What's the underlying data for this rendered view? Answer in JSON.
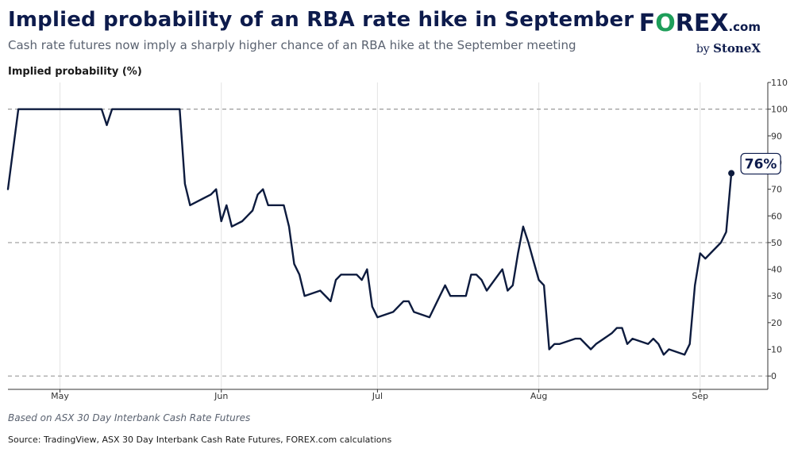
{
  "header": {
    "title": "Implied probability of an RBA rate hike in September",
    "subtitle": "Cash rate futures now imply a sharply higher chance of an RBA hike at the September meeting"
  },
  "logo": {
    "f": "F",
    "o": "O",
    "rex": "REX",
    "dotcom": ".com",
    "by": "by ",
    "brand": "StoneX"
  },
  "footer": {
    "note": "Based on ASX 30 Day Interbank Cash Rate Futures",
    "source": "Source: TradingView, ASX 30 Day Interbank Cash Rate Futures, FOREX.com calculations"
  },
  "colors": {
    "line": "#0d1b3e",
    "accent_green": "#1e9e5a",
    "navy": "#0d1b4c"
  },
  "chart_data": {
    "type": "line",
    "ylabel": "Implied probability (%)",
    "xlabel": "",
    "ylim": [
      -5,
      110
    ],
    "yticks": [
      0,
      10,
      20,
      30,
      40,
      50,
      60,
      70,
      80,
      90,
      100,
      110
    ],
    "dashed_reference_lines": [
      0,
      50,
      100
    ],
    "x_ticks": [
      {
        "label": "May",
        "date": "2025-05-01"
      },
      {
        "label": "Jun",
        "date": "2025-06-01"
      },
      {
        "label": "Jul",
        "date": "2025-07-01"
      },
      {
        "label": "Aug",
        "date": "2025-08-01"
      },
      {
        "label": "Sep",
        "date": "2025-09-01"
      }
    ],
    "xlim": [
      "2025-04-21",
      "2025-09-14"
    ],
    "grid": "vertical at month starts",
    "last_value_label": "76%",
    "series": [
      {
        "points": [
          [
            "2025-04-21",
            70
          ],
          [
            "2025-04-23",
            100
          ],
          [
            "2025-05-01",
            100
          ],
          [
            "2025-05-05",
            100
          ],
          [
            "2025-05-06",
            100
          ],
          [
            "2025-05-07",
            100
          ],
          [
            "2025-05-08",
            100
          ],
          [
            "2025-05-09",
            100
          ],
          [
            "2025-05-10",
            94
          ],
          [
            "2025-05-11",
            100
          ],
          [
            "2025-05-12",
            100
          ],
          [
            "2025-05-15",
            100
          ],
          [
            "2025-05-20",
            100
          ],
          [
            "2025-05-24",
            100
          ],
          [
            "2025-05-25",
            72
          ],
          [
            "2025-05-26",
            64
          ],
          [
            "2025-05-30",
            68
          ],
          [
            "2025-05-31",
            70
          ],
          [
            "2025-06-01",
            58
          ],
          [
            "2025-06-02",
            64
          ],
          [
            "2025-06-03",
            56
          ],
          [
            "2025-06-05",
            58
          ],
          [
            "2025-06-06",
            60
          ],
          [
            "2025-06-07",
            62
          ],
          [
            "2025-06-08",
            68
          ],
          [
            "2025-06-09",
            70
          ],
          [
            "2025-06-10",
            64
          ],
          [
            "2025-06-12",
            64
          ],
          [
            "2025-06-13",
            64
          ],
          [
            "2025-06-14",
            56
          ],
          [
            "2025-06-15",
            42
          ],
          [
            "2025-06-16",
            38
          ],
          [
            "2025-06-17",
            30
          ],
          [
            "2025-06-20",
            32
          ],
          [
            "2025-06-22",
            28
          ],
          [
            "2025-06-23",
            36
          ],
          [
            "2025-06-24",
            38
          ],
          [
            "2025-06-26",
            38
          ],
          [
            "2025-06-27",
            38
          ],
          [
            "2025-06-28",
            36
          ],
          [
            "2025-06-29",
            40
          ],
          [
            "2025-06-30",
            26
          ],
          [
            "2025-07-01",
            22
          ],
          [
            "2025-07-04",
            24
          ],
          [
            "2025-07-06",
            28
          ],
          [
            "2025-07-07",
            28
          ],
          [
            "2025-07-08",
            24
          ],
          [
            "2025-07-11",
            22
          ],
          [
            "2025-07-13",
            30
          ],
          [
            "2025-07-14",
            34
          ],
          [
            "2025-07-15",
            30
          ],
          [
            "2025-07-17",
            30
          ],
          [
            "2025-07-18",
            30
          ],
          [
            "2025-07-19",
            38
          ],
          [
            "2025-07-20",
            38
          ],
          [
            "2025-07-21",
            36
          ],
          [
            "2025-07-22",
            32
          ],
          [
            "2025-07-25",
            40
          ],
          [
            "2025-07-26",
            32
          ],
          [
            "2025-07-27",
            34
          ],
          [
            "2025-07-28",
            46
          ],
          [
            "2025-07-29",
            56
          ],
          [
            "2025-07-30",
            50
          ],
          [
            "2025-07-31",
            43
          ],
          [
            "2025-08-01",
            36
          ],
          [
            "2025-08-02",
            34
          ],
          [
            "2025-08-03",
            10
          ],
          [
            "2025-08-04",
            12
          ],
          [
            "2025-08-05",
            12
          ],
          [
            "2025-08-08",
            14
          ],
          [
            "2025-08-09",
            14
          ],
          [
            "2025-08-11",
            10
          ],
          [
            "2025-08-12",
            12
          ],
          [
            "2025-08-15",
            16
          ],
          [
            "2025-08-16",
            18
          ],
          [
            "2025-08-17",
            18
          ],
          [
            "2025-08-18",
            12
          ],
          [
            "2025-08-19",
            14
          ],
          [
            "2025-08-22",
            12
          ],
          [
            "2025-08-23",
            14
          ],
          [
            "2025-08-24",
            12
          ],
          [
            "2025-08-25",
            8
          ],
          [
            "2025-08-26",
            10
          ],
          [
            "2025-08-29",
            8
          ],
          [
            "2025-08-30",
            12
          ],
          [
            "2025-08-31",
            34
          ],
          [
            "2025-09-01",
            46
          ],
          [
            "2025-09-02",
            44
          ],
          [
            "2025-09-05",
            50
          ],
          [
            "2025-09-06",
            54
          ],
          [
            "2025-09-07",
            76
          ]
        ]
      }
    ]
  }
}
